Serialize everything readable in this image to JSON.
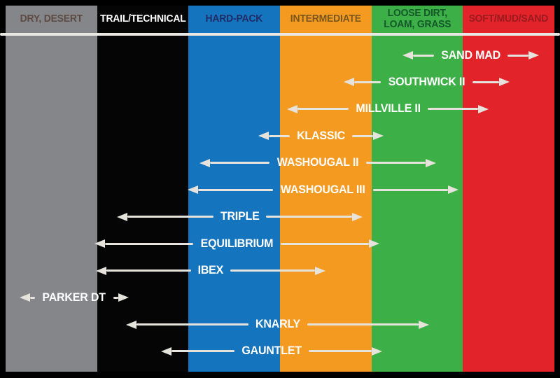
{
  "canvas": {
    "background": "#000000",
    "divider_color": "#EBE8E3",
    "arrow_color": "#E6E3DC",
    "tire_label_color": "#FFFFFF"
  },
  "chart_data": {
    "type": "range-bar",
    "orientation": "horizontal",
    "title": "",
    "xlabel": "",
    "ylabel": "",
    "x_range": [
      0,
      6
    ],
    "grid": false,
    "legend": "none",
    "categories": [
      "DRY, DESERT",
      "TRAIL/TECHNICAL",
      "HARD-PACK",
      "INTERMEDIATE",
      "LOOSE DIRT, LOAM, GRASS",
      "SOFT/MUD/SAND"
    ],
    "columns": [
      {
        "label": "DRY, DESERT",
        "color": "#85868A",
        "text_color": "#5D4B43"
      },
      {
        "label": "TRAIL/TECHNICAL",
        "color": "#050505",
        "text_color": "#FFFFFF"
      },
      {
        "label": "HARD-PACK",
        "color": "#1474BE",
        "text_color": "#202C66"
      },
      {
        "label": "INTERMEDIATE",
        "color": "#F49A21",
        "text_color": "#7A571C"
      },
      {
        "label": "LOOSE DIRT, LOAM, GRASS",
        "color": "#3CAF47",
        "text_color": "#14572A"
      },
      {
        "label": "SOFT/MUD/SAND",
        "color": "#E2232A",
        "text_color": "#9A1A1F"
      }
    ],
    "series": [
      {
        "name": "SAND MAD",
        "range": [
          4.34,
          5.83
        ]
      },
      {
        "name": "SOUTHWICK II",
        "range": [
          3.7,
          5.51
        ]
      },
      {
        "name": "MILLVILLE II",
        "range": [
          3.08,
          5.28
        ]
      },
      {
        "name": "KLASSIC",
        "range": [
          2.76,
          4.13
        ]
      },
      {
        "name": "WASHOUGAL II",
        "range": [
          2.12,
          4.71
        ]
      },
      {
        "name": "WASHOUGAL III",
        "range": [
          1.99,
          4.95
        ]
      },
      {
        "name": "TRIPLE",
        "range": [
          1.22,
          3.9
        ]
      },
      {
        "name": "EQUILIBRIUM",
        "range": [
          0.97,
          4.09
        ]
      },
      {
        "name": "IBEX",
        "range": [
          0.99,
          3.5
        ]
      },
      {
        "name": "PARKER DT",
        "range": [
          0.15,
          1.35
        ]
      },
      {
        "name": "KNARLY",
        "range": [
          1.32,
          4.63
        ]
      },
      {
        "name": "GAUNTLET",
        "range": [
          1.7,
          4.12
        ]
      }
    ]
  }
}
